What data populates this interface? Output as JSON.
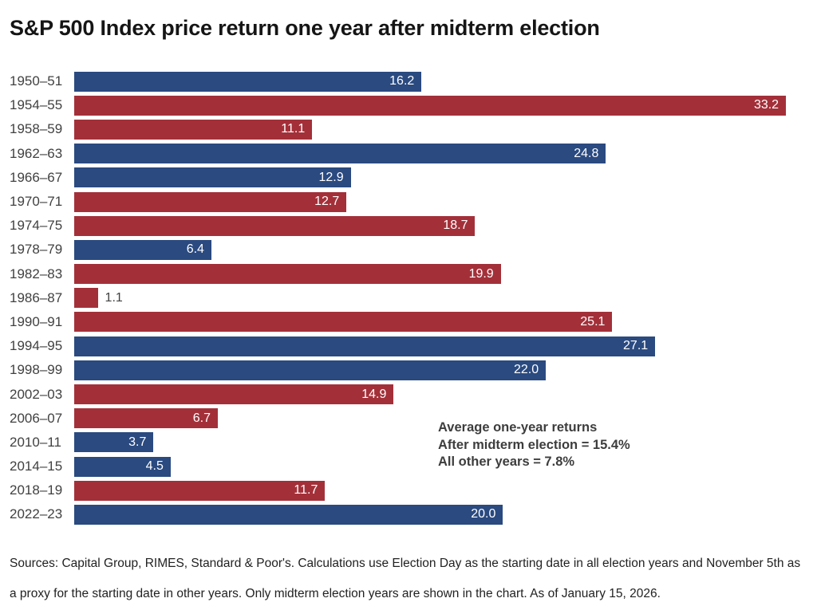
{
  "title": "S&P 500 Index price return one year after midterm election",
  "chart_data": {
    "type": "bar",
    "orientation": "horizontal",
    "title": "S&P 500 Index price return one year after midterm election",
    "xlabel": "",
    "ylabel": "",
    "xlim": [
      0,
      33.2
    ],
    "grid": false,
    "legend": "none",
    "value_unit": "percent",
    "colors": {
      "blue": "#2A4A80",
      "red": "#A33039"
    },
    "categories": [
      "1950–51",
      "1954–55",
      "1958–59",
      "1962–63",
      "1966–67",
      "1970–71",
      "1974–75",
      "1978–79",
      "1982–83",
      "1986–87",
      "1990–91",
      "1994–95",
      "1998–99",
      "2002–03",
      "2006–07",
      "2010–11",
      "2014–15",
      "2018–19",
      "2022–23"
    ],
    "values": [
      16.2,
      33.2,
      11.1,
      24.8,
      12.9,
      12.7,
      18.7,
      6.4,
      19.9,
      1.1,
      25.1,
      27.1,
      22.0,
      14.9,
      6.7,
      3.7,
      4.5,
      11.7,
      20.0
    ],
    "bars": [
      {
        "year": "1950–51",
        "value": 16.2,
        "label": "16.2",
        "color": "blue"
      },
      {
        "year": "1954–55",
        "value": 33.2,
        "label": "33.2",
        "color": "red"
      },
      {
        "year": "1958–59",
        "value": 11.1,
        "label": "11.1",
        "color": "red"
      },
      {
        "year": "1962–63",
        "value": 24.8,
        "label": "24.8",
        "color": "blue"
      },
      {
        "year": "1966–67",
        "value": 12.9,
        "label": "12.9",
        "color": "blue"
      },
      {
        "year": "1970–71",
        "value": 12.7,
        "label": "12.7",
        "color": "red"
      },
      {
        "year": "1974–75",
        "value": 18.7,
        "label": "18.7",
        "color": "red"
      },
      {
        "year": "1978–79",
        "value": 6.4,
        "label": "6.4",
        "color": "blue"
      },
      {
        "year": "1982–83",
        "value": 19.9,
        "label": "19.9",
        "color": "red"
      },
      {
        "year": "1986–87",
        "value": 1.1,
        "label": "1.1",
        "color": "red"
      },
      {
        "year": "1990–91",
        "value": 25.1,
        "label": "25.1",
        "color": "red"
      },
      {
        "year": "1994–95",
        "value": 27.1,
        "label": "27.1",
        "color": "blue"
      },
      {
        "year": "1998–99",
        "value": 22.0,
        "label": "22.0",
        "color": "blue"
      },
      {
        "year": "2002–03",
        "value": 14.9,
        "label": "14.9",
        "color": "red"
      },
      {
        "year": "2006–07",
        "value": 6.7,
        "label": "6.7",
        "color": "red"
      },
      {
        "year": "2010–11",
        "value": 3.7,
        "label": "3.7",
        "color": "blue"
      },
      {
        "year": "2014–15",
        "value": 4.5,
        "label": "4.5",
        "color": "blue"
      },
      {
        "year": "2018–19",
        "value": 11.7,
        "label": "11.7",
        "color": "red"
      },
      {
        "year": "2022–23",
        "value": 20.0,
        "label": "20.0",
        "color": "blue"
      }
    ],
    "annotation": {
      "lines": [
        "Average one-year returns",
        "After midterm election = 15.4%",
        "All other years = 7.8%"
      ]
    }
  },
  "footer": "Sources: Capital Group, RIMES, Standard & Poor's. Calculations use Election Day as the starting date in all election years and November 5th as a proxy for the starting date in other years. Only midterm election years are shown in the chart. As of January 15, 2026."
}
